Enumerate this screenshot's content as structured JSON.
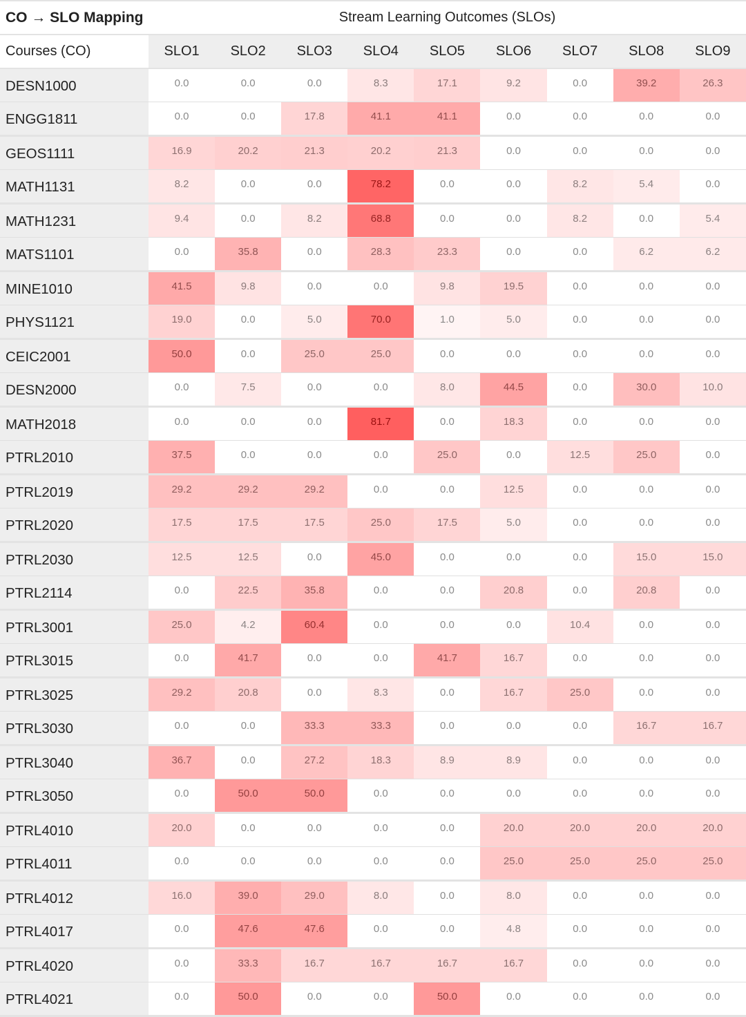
{
  "header": {
    "title": "CO → SLO Mapping",
    "group_label": "Stream Learning Outcomes (SLOs)",
    "row_header": "Courses (CO)"
  },
  "colors": {
    "heat_base": "#ff0000",
    "label_bg": "#eeeeee",
    "zero_text": "#8a8a8a",
    "high_text": "#9b1010"
  },
  "chart_data": {
    "type": "heatmap",
    "title": "CO → SLO Mapping",
    "xlabel": "Stream Learning Outcomes (SLOs)",
    "ylabel": "Courses (CO)",
    "columns": [
      "SLO1",
      "SLO2",
      "SLO3",
      "SLO4",
      "SLO5",
      "SLO6",
      "SLO7",
      "SLO8",
      "SLO9"
    ],
    "rows": [
      {
        "course": "DESN1000",
        "values": [
          0.0,
          0.0,
          0.0,
          8.3,
          17.1,
          9.2,
          0.0,
          39.2,
          26.3
        ]
      },
      {
        "course": "ENGG1811",
        "values": [
          0.0,
          0.0,
          17.8,
          41.1,
          41.1,
          0.0,
          0.0,
          0.0,
          0.0
        ]
      },
      {
        "course": "GEOS1111",
        "values": [
          16.9,
          20.2,
          21.3,
          20.2,
          21.3,
          0.0,
          0.0,
          0.0,
          0.0
        ]
      },
      {
        "course": "MATH1131",
        "values": [
          8.2,
          0.0,
          0.0,
          78.2,
          0.0,
          0.0,
          8.2,
          5.4,
          0.0
        ]
      },
      {
        "course": "MATH1231",
        "values": [
          9.4,
          0.0,
          8.2,
          68.8,
          0.0,
          0.0,
          8.2,
          0.0,
          5.4
        ]
      },
      {
        "course": "MATS1101",
        "values": [
          0.0,
          35.8,
          0.0,
          28.3,
          23.3,
          0.0,
          0.0,
          6.2,
          6.2
        ]
      },
      {
        "course": "MINE1010",
        "values": [
          41.5,
          9.8,
          0.0,
          0.0,
          9.8,
          19.5,
          0.0,
          0.0,
          0.0
        ]
      },
      {
        "course": "PHYS1121",
        "values": [
          19.0,
          0.0,
          5.0,
          70.0,
          1.0,
          5.0,
          0.0,
          0.0,
          0.0
        ]
      },
      {
        "course": "CEIC2001",
        "values": [
          50.0,
          0.0,
          25.0,
          25.0,
          0.0,
          0.0,
          0.0,
          0.0,
          0.0
        ]
      },
      {
        "course": "DESN2000",
        "values": [
          0.0,
          7.5,
          0.0,
          0.0,
          8.0,
          44.5,
          0.0,
          30.0,
          10.0
        ]
      },
      {
        "course": "MATH2018",
        "values": [
          0.0,
          0.0,
          0.0,
          81.7,
          0.0,
          18.3,
          0.0,
          0.0,
          0.0
        ]
      },
      {
        "course": "PTRL2010",
        "values": [
          37.5,
          0.0,
          0.0,
          0.0,
          25.0,
          0.0,
          12.5,
          25.0,
          0.0
        ]
      },
      {
        "course": "PTRL2019",
        "values": [
          29.2,
          29.2,
          29.2,
          0.0,
          0.0,
          12.5,
          0.0,
          0.0,
          0.0
        ]
      },
      {
        "course": "PTRL2020",
        "values": [
          17.5,
          17.5,
          17.5,
          25.0,
          17.5,
          5.0,
          0.0,
          0.0,
          0.0
        ]
      },
      {
        "course": "PTRL2030",
        "values": [
          12.5,
          12.5,
          0.0,
          45.0,
          0.0,
          0.0,
          0.0,
          15.0,
          15.0
        ]
      },
      {
        "course": "PTRL2114",
        "values": [
          0.0,
          22.5,
          35.8,
          0.0,
          0.0,
          20.8,
          0.0,
          20.8,
          0.0
        ]
      },
      {
        "course": "PTRL3001",
        "values": [
          25.0,
          4.2,
          60.4,
          0.0,
          0.0,
          0.0,
          10.4,
          0.0,
          0.0
        ]
      },
      {
        "course": "PTRL3015",
        "values": [
          0.0,
          41.7,
          0.0,
          0.0,
          41.7,
          16.7,
          0.0,
          0.0,
          0.0
        ]
      },
      {
        "course": "PTRL3025",
        "values": [
          29.2,
          20.8,
          0.0,
          8.3,
          0.0,
          16.7,
          25.0,
          0.0,
          0.0
        ]
      },
      {
        "course": "PTRL3030",
        "values": [
          0.0,
          0.0,
          33.3,
          33.3,
          0.0,
          0.0,
          0.0,
          16.7,
          16.7
        ]
      },
      {
        "course": "PTRL3040",
        "values": [
          36.7,
          0.0,
          27.2,
          18.3,
          8.9,
          8.9,
          0.0,
          0.0,
          0.0
        ]
      },
      {
        "course": "PTRL3050",
        "values": [
          0.0,
          50.0,
          50.0,
          0.0,
          0.0,
          0.0,
          0.0,
          0.0,
          0.0
        ]
      },
      {
        "course": "PTRL4010",
        "values": [
          20.0,
          0.0,
          0.0,
          0.0,
          0.0,
          20.0,
          20.0,
          20.0,
          20.0
        ]
      },
      {
        "course": "PTRL4011",
        "values": [
          0.0,
          0.0,
          0.0,
          0.0,
          0.0,
          25.0,
          25.0,
          25.0,
          25.0
        ]
      },
      {
        "course": "PTRL4012",
        "values": [
          16.0,
          39.0,
          29.0,
          8.0,
          0.0,
          8.0,
          0.0,
          0.0,
          0.0
        ]
      },
      {
        "course": "PTRL4017",
        "values": [
          0.0,
          47.6,
          47.6,
          0.0,
          0.0,
          4.8,
          0.0,
          0.0,
          0.0
        ]
      },
      {
        "course": "PTRL4020",
        "values": [
          0.0,
          33.3,
          16.7,
          16.7,
          16.7,
          16.7,
          0.0,
          0.0,
          0.0
        ]
      },
      {
        "course": "PTRL4021",
        "values": [
          0.0,
          50.0,
          0.0,
          0.0,
          50.0,
          0.0,
          0.0,
          0.0,
          0.0
        ]
      }
    ],
    "value_format": "0.0",
    "color_scale": {
      "min": 0,
      "max": 81.7,
      "low": "#ffffff",
      "high": "#ff5f5f"
    }
  }
}
